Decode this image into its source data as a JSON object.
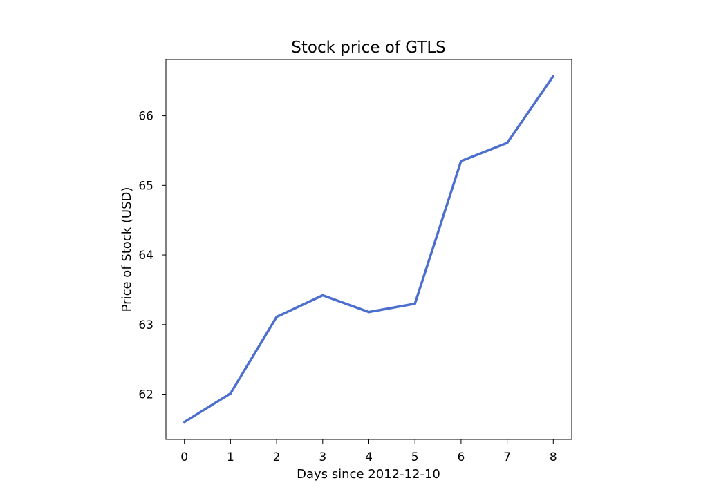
{
  "chart_data": {
    "type": "line",
    "title": "Stock price of GTLS",
    "xlabel": "Days since 2012-12-10",
    "ylabel": "Price of Stock (USD)",
    "x": [
      0,
      1,
      2,
      3,
      4,
      5,
      6,
      7,
      8
    ],
    "series": [
      {
        "values": [
          61.6,
          62.01,
          63.11,
          63.42,
          63.18,
          63.3,
          65.35,
          65.61,
          66.57
        ],
        "color": "#4c6fcf"
      }
    ],
    "xlim": [
      -0.4,
      8.4
    ],
    "ylim": [
      61.35,
      66.81
    ],
    "xticks": [
      0,
      1,
      2,
      3,
      4,
      5,
      6,
      7,
      8
    ],
    "yticks": [
      62,
      63,
      64,
      65,
      66
    ],
    "grid": false,
    "legend": "none"
  }
}
